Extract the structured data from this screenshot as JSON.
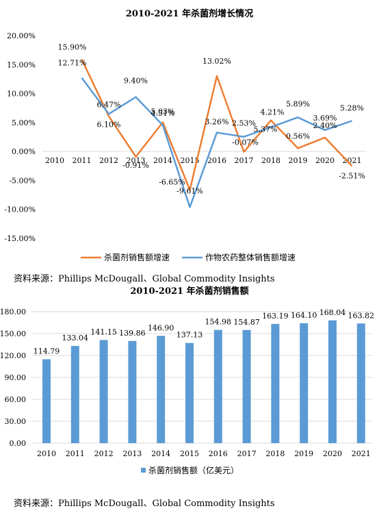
{
  "chart_data": [
    {
      "type": "line",
      "title": "2010-2021 年杀菌剂增长情况",
      "x": [
        "2010",
        "2011",
        "2012",
        "2013",
        "2014",
        "2015",
        "2016",
        "2017",
        "2018",
        "2019",
        "2020",
        "2021"
      ],
      "ylim": [
        -15,
        20
      ],
      "yticks": [
        "20.00%",
        "15.00%",
        "10.00%",
        "5.00%",
        "0.00%",
        "-5.00%",
        "-10.00%",
        "-15.00%"
      ],
      "grid": false,
      "legend": "bottom",
      "series": [
        {
          "name": "杀菌剂销售额增速",
          "color": "#ED7D31",
          "values": [
            null,
            15.9,
            6.1,
            -0.91,
            5.03,
            -6.65,
            13.02,
            -0.07,
            5.37,
            0.56,
            2.4,
            -2.51
          ],
          "labels": [
            "",
            "15.90%",
            "6.10%",
            "-0.91%",
            "5.03%",
            "-6.65%",
            "13.02%",
            "-0.07%",
            "5.37%",
            "0.56%",
            "2.40%",
            "-2.51%"
          ]
        },
        {
          "name": "作物农药整体销售额增速",
          "color": "#5B9BD5",
          "values": [
            null,
            12.71,
            6.47,
            9.4,
            4.51,
            -9.61,
            3.26,
            2.53,
            4.21,
            5.89,
            3.69,
            5.28
          ],
          "labels": [
            "",
            "12.71%",
            "6.47%",
            "9.40%",
            "4.51%",
            "-9.61%",
            "3.26%",
            "2.53%",
            "4.21%",
            "5.89%",
            "3.69%",
            "5.28%"
          ]
        }
      ]
    },
    {
      "type": "bar",
      "title": "2010-2021 年杀菌剂销售额",
      "categories": [
        "2010",
        "2011",
        "2012",
        "2013",
        "2014",
        "2015",
        "2016",
        "2017",
        "2018",
        "2019",
        "2020",
        "2021"
      ],
      "ylim": [
        0,
        180
      ],
      "yticks": [
        "180.00",
        "150.00",
        "120.00",
        "90.00",
        "60.00",
        "30.00",
        "0.00"
      ],
      "grid": true,
      "legend": "bottom",
      "series": [
        {
          "name": "杀菌剂销售额（亿美元）",
          "color": "#5B9BD5",
          "values": [
            114.79,
            133.04,
            141.15,
            139.86,
            146.9,
            137.13,
            154.98,
            154.87,
            163.19,
            164.1,
            168.04,
            163.82
          ],
          "labels": [
            "114.79",
            "133.04",
            "141.15",
            "139.86",
            "146.90",
            "137.13",
            "154.98",
            "154.87",
            "163.19",
            "164.10",
            "168.04",
            "163.82"
          ]
        }
      ]
    }
  ],
  "sources": {
    "top": "资料来源：Phillips McDougall、Global Commodity Insights",
    "bottom": "资料来源：Phillips McDougall、Global Commodity Insights"
  }
}
